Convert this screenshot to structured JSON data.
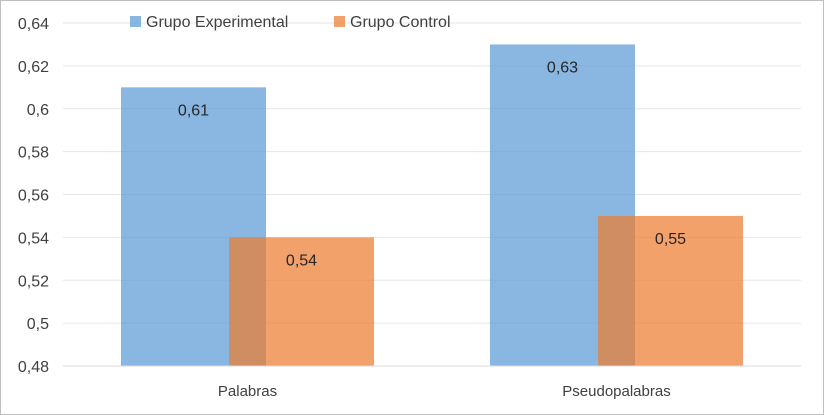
{
  "chart_data": {
    "type": "bar",
    "categories": [
      "Palabras",
      "Pseudopalabras"
    ],
    "series": [
      {
        "name": "Grupo Experimental",
        "values": [
          0.61,
          0.63
        ],
        "labels": [
          "0,61",
          "0,63"
        ],
        "color": "#5b9bd5"
      },
      {
        "name": "Grupo Control",
        "values": [
          0.54,
          0.55
        ],
        "labels": [
          "0,54",
          "0,55"
        ],
        "color": "#ed7d31"
      }
    ],
    "ylim": [
      0.48,
      0.64
    ],
    "yticks": [
      0.48,
      0.5,
      0.52,
      0.54,
      0.56,
      0.58,
      0.6,
      0.62,
      0.64
    ],
    "ytick_labels": [
      "0,48",
      "0,5",
      "0,52",
      "0,54",
      "0,56",
      "0,58",
      "0,6",
      "0,62",
      "0,64"
    ],
    "grid": true,
    "legend": "top-left",
    "title": "",
    "xlabel": "",
    "ylabel": ""
  }
}
